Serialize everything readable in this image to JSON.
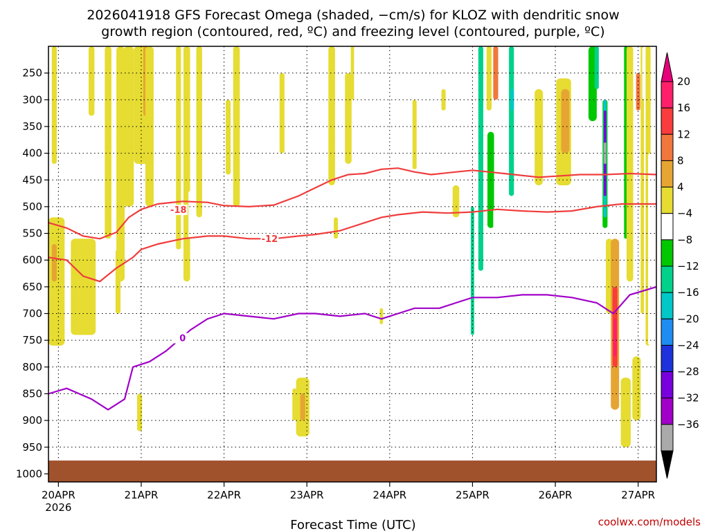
{
  "chart_data": {
    "type": "heatmap",
    "title_line1": "2026041918 GFS Forecast Omega (shaded, −cm/s) for KLOZ with dendritic snow",
    "title_line2": "growth region (contoured, red, ºC) and freezing level (contoured, purple, ºC)",
    "xlabel": "Forecast Time (UTC)",
    "credit": "coolwx.com/models",
    "x_range_days": [
      -0.12,
      7.22
    ],
    "x_ticks": [
      {
        "day": 0,
        "label": "20APR",
        "sub": "2026"
      },
      {
        "day": 1,
        "label": "21APR"
      },
      {
        "day": 2,
        "label": "22APR"
      },
      {
        "day": 3,
        "label": "23APR"
      },
      {
        "day": 4,
        "label": "24APR"
      },
      {
        "day": 5,
        "label": "25APR"
      },
      {
        "day": 6,
        "label": "26APR"
      },
      {
        "day": 7,
        "label": "27APR"
      }
    ],
    "y_range_hpa": [
      200,
      1015
    ],
    "y_ticks": [
      250,
      300,
      350,
      400,
      450,
      500,
      550,
      600,
      650,
      700,
      750,
      800,
      850,
      900,
      950,
      1000
    ],
    "surface_level_hpa": 975,
    "colorbar": {
      "labels": [
        "20",
        "16",
        "12",
        "8",
        "4",
        "−4",
        "−8",
        "−12",
        "−16",
        "−20",
        "−24",
        "−28",
        "−32",
        "−36"
      ],
      "colors": [
        "#ff1f6a",
        "#fa3c3c",
        "#f0783c",
        "#e6a532",
        "#e6dc32",
        "#ffffff",
        "#00c800",
        "#00d28c",
        "#00c8c8",
        "#1e8cf0",
        "#1e32dc",
        "#7800dc",
        "#a000c8",
        "#aaaaaa"
      ],
      "top_arrow_color": "#e6007a",
      "bottom_arrow_color": "#000000"
    },
    "omega_regions": [
      {
        "day": -0.05,
        "p1": 200,
        "p2": 420,
        "w": 0.06,
        "v": 4
      },
      {
        "day": 0.4,
        "p1": 200,
        "p2": 330,
        "w": 0.07,
        "v": 4
      },
      {
        "day": -0.1,
        "p1": 520,
        "p2": 760,
        "w": 0.35,
        "v": 4
      },
      {
        "day": -0.05,
        "p1": 570,
        "p2": 640,
        "w": 0.06,
        "v": 8
      },
      {
        "day": 0.3,
        "p1": 560,
        "p2": 740,
        "w": 0.3,
        "v": 4
      },
      {
        "day": 0.5,
        "p1": 380,
        "p2": 460,
        "w": 0.1,
        "v": -4
      },
      {
        "day": 0.6,
        "p1": 200,
        "p2": 560,
        "w": 0.08,
        "v": 4
      },
      {
        "day": 0.72,
        "p1": 580,
        "p2": 700,
        "w": 0.06,
        "v": 4
      },
      {
        "day": 0.75,
        "p1": 200,
        "p2": 640,
        "w": 0.1,
        "v": 4
      },
      {
        "day": 0.85,
        "p1": 200,
        "p2": 500,
        "w": 0.12,
        "v": 4
      },
      {
        "day": 1.0,
        "p1": 200,
        "p2": 420,
        "w": 0.18,
        "v": 4
      },
      {
        "day": 1.05,
        "p1": 200,
        "p2": 330,
        "w": 0.05,
        "v": 8
      },
      {
        "day": 1.1,
        "p1": 200,
        "p2": 500,
        "w": 0.1,
        "v": 4
      },
      {
        "day": 0.0,
        "p1": 800,
        "p2": 880,
        "w": 0.06,
        "v": -4
      },
      {
        "day": 0.55,
        "p1": 820,
        "p2": 900,
        "w": 0.06,
        "v": -4
      },
      {
        "day": 0.98,
        "p1": 850,
        "p2": 920,
        "w": 0.06,
        "v": 4
      },
      {
        "day": 1.0,
        "p1": 420,
        "p2": 640,
        "w": 0.04,
        "v": -4
      },
      {
        "day": 1.45,
        "p1": 200,
        "p2": 580,
        "w": 0.06,
        "v": 4
      },
      {
        "day": 1.55,
        "p1": 200,
        "p2": 640,
        "w": 0.08,
        "v": 4
      },
      {
        "day": 1.6,
        "p1": 470,
        "p2": 560,
        "w": 0.06,
        "v": -4
      },
      {
        "day": 1.7,
        "p1": 200,
        "p2": 520,
        "w": 0.07,
        "v": 4
      },
      {
        "day": 2.05,
        "p1": 300,
        "p2": 440,
        "w": 0.06,
        "v": 4
      },
      {
        "day": 2.15,
        "p1": 200,
        "p2": 500,
        "w": 0.08,
        "v": 4
      },
      {
        "day": 2.3,
        "p1": 540,
        "p2": 640,
        "w": 0.05,
        "v": -4
      },
      {
        "day": 2.7,
        "p1": 250,
        "p2": 400,
        "w": 0.06,
        "v": 4
      },
      {
        "day": 2.85,
        "p1": 840,
        "p2": 900,
        "w": 0.05,
        "v": 4
      },
      {
        "day": 2.95,
        "p1": 820,
        "p2": 930,
        "w": 0.16,
        "v": 4
      },
      {
        "day": 2.95,
        "p1": 850,
        "p2": 900,
        "w": 0.06,
        "v": 8
      },
      {
        "day": 3.3,
        "p1": 200,
        "p2": 460,
        "w": 0.08,
        "v": 4
      },
      {
        "day": 3.35,
        "p1": 520,
        "p2": 560,
        "w": 0.05,
        "v": 4
      },
      {
        "day": 3.5,
        "p1": 250,
        "p2": 420,
        "w": 0.08,
        "v": 4
      },
      {
        "day": 3.55,
        "p1": 200,
        "p2": 300,
        "w": 0.04,
        "v": 4
      },
      {
        "day": 3.8,
        "p1": 780,
        "p2": 900,
        "w": 0.06,
        "v": -4
      },
      {
        "day": 3.9,
        "p1": 690,
        "p2": 720,
        "w": 0.04,
        "v": 4
      },
      {
        "day": 4.3,
        "p1": 300,
        "p2": 430,
        "w": 0.05,
        "v": 4
      },
      {
        "day": 4.65,
        "p1": 280,
        "p2": 320,
        "w": 0.05,
        "v": 4
      },
      {
        "day": 4.8,
        "p1": 460,
        "p2": 520,
        "w": 0.08,
        "v": 4
      },
      {
        "day": 4.9,
        "p1": 200,
        "p2": 480,
        "w": 0.08,
        "v": -4
      },
      {
        "day": 4.97,
        "p1": 350,
        "p2": 800,
        "w": 0.1,
        "v": -4
      },
      {
        "day": 5.0,
        "p1": 500,
        "p2": 740,
        "w": 0.04,
        "v": -12
      },
      {
        "day": 5.1,
        "p1": 200,
        "p2": 620,
        "w": 0.06,
        "v": -12
      },
      {
        "day": 5.2,
        "p1": 200,
        "p2": 320,
        "w": 0.06,
        "v": 4
      },
      {
        "day": 5.28,
        "p1": 200,
        "p2": 300,
        "w": 0.06,
        "v": 12
      },
      {
        "day": 5.22,
        "p1": 360,
        "p2": 540,
        "w": 0.08,
        "v": -8
      },
      {
        "day": 5.3,
        "p1": 500,
        "p2": 800,
        "w": 0.1,
        "v": -4
      },
      {
        "day": 5.47,
        "p1": 200,
        "p2": 480,
        "w": 0.06,
        "v": -12
      },
      {
        "day": 5.48,
        "p1": 280,
        "p2": 320,
        "w": 0.04,
        "v": -16
      },
      {
        "day": 5.5,
        "p1": 700,
        "p2": 800,
        "w": 0.06,
        "v": -4
      },
      {
        "day": 5.8,
        "p1": 280,
        "p2": 460,
        "w": 0.1,
        "v": 4
      },
      {
        "day": 5.9,
        "p1": 260,
        "p2": 320,
        "w": 0.06,
        "v": -4
      },
      {
        "day": 5.85,
        "p1": 840,
        "p2": 900,
        "w": 0.05,
        "v": -4
      },
      {
        "day": 6.1,
        "p1": 260,
        "p2": 460,
        "w": 0.18,
        "v": 4
      },
      {
        "day": 6.12,
        "p1": 280,
        "p2": 400,
        "w": 0.1,
        "v": 8
      },
      {
        "day": 6.35,
        "p1": 200,
        "p2": 260,
        "w": 0.1,
        "v": -4
      },
      {
        "day": 6.45,
        "p1": 200,
        "p2": 340,
        "w": 0.1,
        "v": -8
      },
      {
        "day": 6.5,
        "p1": 200,
        "p2": 280,
        "w": 0.05,
        "v": -12
      },
      {
        "day": 6.6,
        "p1": 300,
        "p2": 540,
        "w": 0.06,
        "v": -8
      },
      {
        "day": 6.6,
        "p1": 300,
        "p2": 520,
        "w": 0.04,
        "v": -16
      },
      {
        "day": 6.6,
        "p1": 320,
        "p2": 480,
        "w": 0.03,
        "v": -28
      },
      {
        "day": 6.6,
        "p1": 380,
        "p2": 420,
        "w": 0.03,
        "v": -36
      },
      {
        "day": 6.65,
        "p1": 560,
        "p2": 700,
        "w": 0.08,
        "v": 4
      },
      {
        "day": 6.72,
        "p1": 560,
        "p2": 880,
        "w": 0.1,
        "v": 8
      },
      {
        "day": 6.72,
        "p1": 650,
        "p2": 800,
        "w": 0.06,
        "v": 16
      },
      {
        "day": 6.72,
        "p1": 710,
        "p2": 780,
        "w": 0.04,
        "v": 20
      },
      {
        "day": 6.85,
        "p1": 200,
        "p2": 560,
        "w": 0.04,
        "v": -8
      },
      {
        "day": 6.85,
        "p1": 560,
        "p2": 700,
        "w": 0.1,
        "v": -4
      },
      {
        "day": 6.9,
        "p1": 200,
        "p2": 640,
        "w": 0.08,
        "v": 4
      },
      {
        "day": 6.85,
        "p1": 820,
        "p2": 950,
        "w": 0.12,
        "v": 4
      },
      {
        "day": 6.98,
        "p1": 780,
        "p2": 900,
        "w": 0.1,
        "v": 4
      },
      {
        "day": 7.0,
        "p1": 250,
        "p2": 320,
        "w": 0.05,
        "v": 12
      },
      {
        "day": 7.05,
        "p1": 200,
        "p2": 700,
        "w": 0.04,
        "v": 4
      },
      {
        "day": 7.08,
        "p1": 200,
        "p2": 300,
        "w": 0.06,
        "v": -4
      },
      {
        "day": 7.12,
        "p1": 200,
        "p2": 760,
        "w": 0.06,
        "v": 4
      },
      {
        "day": 7.15,
        "p1": 400,
        "p2": 760,
        "w": 0.06,
        "v": -4
      }
    ],
    "contours": [
      {
        "name": "contour-minus-18",
        "color": "#f03c3c",
        "label": "-18",
        "label_day": 1.45,
        "label_p": 508,
        "points": [
          [
            -0.12,
            530
          ],
          [
            0.1,
            540
          ],
          [
            0.3,
            555
          ],
          [
            0.5,
            560
          ],
          [
            0.7,
            548
          ],
          [
            0.85,
            520
          ],
          [
            1.0,
            505
          ],
          [
            1.2,
            495
          ],
          [
            1.5,
            490
          ],
          [
            1.8,
            492
          ],
          [
            2.0,
            498
          ],
          [
            2.3,
            500
          ],
          [
            2.6,
            497
          ],
          [
            2.9,
            480
          ],
          [
            3.1,
            465
          ],
          [
            3.3,
            450
          ],
          [
            3.5,
            440
          ],
          [
            3.7,
            438
          ],
          [
            3.9,
            430
          ],
          [
            4.1,
            428
          ],
          [
            4.3,
            435
          ],
          [
            4.5,
            440
          ],
          [
            4.8,
            435
          ],
          [
            5.0,
            432
          ],
          [
            5.2,
            435
          ],
          [
            5.5,
            440
          ],
          [
            5.8,
            445
          ],
          [
            6.0,
            443
          ],
          [
            6.3,
            440
          ],
          [
            6.6,
            440
          ],
          [
            6.9,
            438
          ],
          [
            7.22,
            440
          ]
        ]
      },
      {
        "name": "contour-minus-12",
        "color": "#f03c3c",
        "label": "-12",
        "label_day": 2.55,
        "label_p": 562,
        "points": [
          [
            -0.12,
            595
          ],
          [
            0.1,
            600
          ],
          [
            0.3,
            630
          ],
          [
            0.5,
            640
          ],
          [
            0.7,
            615
          ],
          [
            0.9,
            595
          ],
          [
            1.0,
            580
          ],
          [
            1.2,
            570
          ],
          [
            1.5,
            560
          ],
          [
            1.8,
            555
          ],
          [
            2.0,
            555
          ],
          [
            2.3,
            560
          ],
          [
            2.6,
            560
          ],
          [
            2.9,
            555
          ],
          [
            3.1,
            552
          ],
          [
            3.4,
            545
          ],
          [
            3.7,
            530
          ],
          [
            3.9,
            520
          ],
          [
            4.1,
            515
          ],
          [
            4.4,
            510
          ],
          [
            4.7,
            512
          ],
          [
            5.0,
            510
          ],
          [
            5.3,
            505
          ],
          [
            5.6,
            508
          ],
          [
            5.9,
            510
          ],
          [
            6.2,
            508
          ],
          [
            6.5,
            500
          ],
          [
            6.8,
            495
          ],
          [
            7.22,
            495
          ]
        ]
      },
      {
        "name": "contour-zero",
        "color": "#a000c8",
        "label": "0",
        "label_day": 1.5,
        "label_p": 748,
        "points": [
          [
            -0.12,
            850
          ],
          [
            0.1,
            840
          ],
          [
            0.4,
            860
          ],
          [
            0.6,
            880
          ],
          [
            0.8,
            860
          ],
          [
            0.9,
            800
          ],
          [
            1.1,
            790
          ],
          [
            1.3,
            770
          ],
          [
            1.6,
            730
          ],
          [
            1.8,
            710
          ],
          [
            2.0,
            700
          ],
          [
            2.3,
            705
          ],
          [
            2.6,
            710
          ],
          [
            2.9,
            700
          ],
          [
            3.1,
            700
          ],
          [
            3.4,
            705
          ],
          [
            3.7,
            700
          ],
          [
            3.9,
            710
          ],
          [
            4.1,
            700
          ],
          [
            4.3,
            690
          ],
          [
            4.6,
            690
          ],
          [
            4.8,
            680
          ],
          [
            5.0,
            670
          ],
          [
            5.3,
            670
          ],
          [
            5.6,
            665
          ],
          [
            5.9,
            665
          ],
          [
            6.2,
            670
          ],
          [
            6.5,
            680
          ],
          [
            6.7,
            700
          ],
          [
            6.9,
            665
          ],
          [
            7.22,
            650
          ]
        ]
      }
    ],
    "contour_values_c": [
      "-18",
      "-12",
      "0"
    ]
  }
}
